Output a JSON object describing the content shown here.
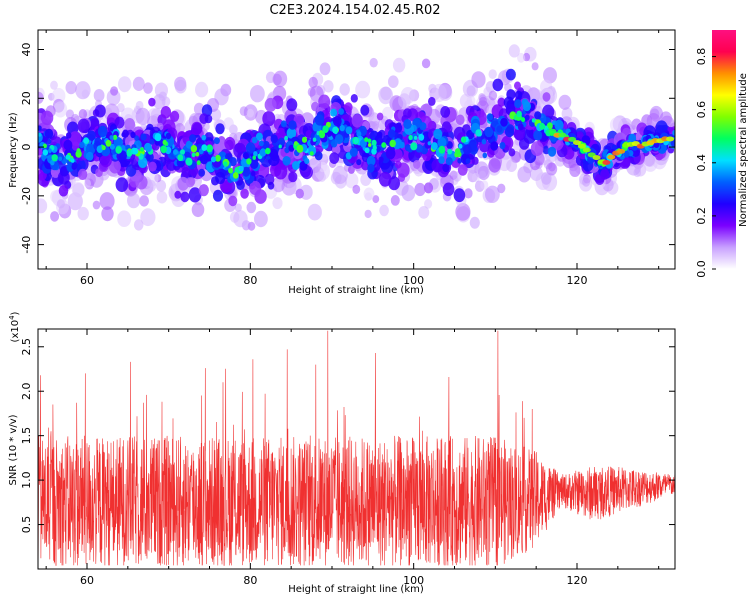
{
  "figure": {
    "title": "C2E3.2024.154.02.45.R02"
  },
  "chart_data": [
    {
      "type": "heatmap",
      "xlabel": "Height of straight line (km)",
      "ylabel": "Frequency (Hz)",
      "xlim": [
        54,
        132
      ],
      "ylim": [
        -50,
        48
      ],
      "xticks": [
        60,
        80,
        100,
        120
      ],
      "xtick_labels": [
        "60",
        "80",
        "100",
        "120"
      ],
      "yticks": [
        -40,
        -20,
        0,
        20,
        40
      ],
      "ytick_labels": [
        "-40",
        "-20",
        "0",
        "20",
        "40"
      ],
      "colorbar": {
        "label": "Normalized spectral amplitude",
        "range": [
          0,
          0.9
        ],
        "ticks": [
          0.0,
          0.2,
          0.4,
          0.6,
          0.8
        ],
        "tick_labels": [
          "0.0",
          "0.2",
          "0.4",
          "0.6",
          "0.8"
        ],
        "colormap": [
          "#ffffff",
          "#c8a0ff",
          "#7a00ff",
          "#2000ff",
          "#0060ff",
          "#00e0ff",
          "#00ff60",
          "#80ff00",
          "#ffff00",
          "#ff9000",
          "#ff0050",
          "#ff1080"
        ]
      },
      "ridge": {
        "x": [
          54,
          57,
          60,
          63,
          66,
          69,
          72,
          75,
          78,
          81,
          84,
          87,
          90,
          93,
          96,
          99,
          102,
          105,
          108,
          111,
          114,
          117,
          120,
          123,
          126,
          129,
          132
        ],
        "y": [
          4,
          -6,
          0,
          2,
          -3,
          3,
          -5,
          -2,
          -10,
          -3,
          3,
          -1,
          10,
          3,
          -1,
          4,
          2,
          -3,
          6,
          9,
          14,
          6,
          2,
          -7,
          0,
          2,
          3
        ]
      }
    },
    {
      "type": "line",
      "xlabel": "Height of straight line (km)",
      "ylabel": "SNR (10 * v/v)",
      "y_multiplier_label": "(x10",
      "y_multiplier_exponent": "4",
      "xlim": [
        54,
        132
      ],
      "ylim": [
        0,
        2.7
      ],
      "xticks": [
        60,
        80,
        100,
        120
      ],
      "xtick_labels": [
        "60",
        "80",
        "100",
        "120"
      ],
      "yticks": [
        0.5,
        1.0,
        1.5,
        2.0,
        2.5
      ],
      "ytick_labels": [
        "0.5",
        "1.0",
        "1.5",
        "2.0",
        "2.5"
      ],
      "series": [
        {
          "color": "#f03030",
          "envelope_x": [
            54,
            60,
            70,
            80,
            90,
            100,
            110,
            115,
            118,
            122,
            126,
            132
          ],
          "envelope_mean": [
            0.75,
            0.75,
            0.75,
            0.75,
            0.75,
            0.75,
            0.75,
            0.78,
            0.88,
            0.85,
            0.9,
            0.95
          ],
          "envelope_spread": [
            0.75,
            0.75,
            0.75,
            0.75,
            0.75,
            0.75,
            0.75,
            0.55,
            0.18,
            0.32,
            0.25,
            0.12
          ],
          "peaks": [
            {
              "x": 54.3,
              "y": 2.18
            },
            {
              "x": 59.8,
              "y": 2.2
            },
            {
              "x": 65.3,
              "y": 2.33
            },
            {
              "x": 74.5,
              "y": 2.26
            },
            {
              "x": 80.3,
              "y": 2.36
            },
            {
              "x": 84.5,
              "y": 2.47
            },
            {
              "x": 89.5,
              "y": 2.68
            },
            {
              "x": 95.3,
              "y": 2.43
            },
            {
              "x": 104.3,
              "y": 2.16
            },
            {
              "x": 110.3,
              "y": 2.68
            },
            {
              "x": 114.5,
              "y": 1.8
            }
          ]
        }
      ]
    }
  ]
}
